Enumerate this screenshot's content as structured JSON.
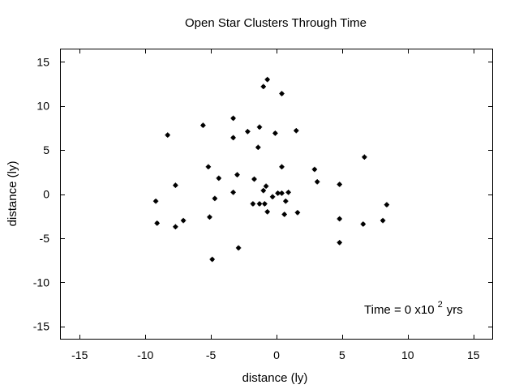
{
  "chart_data": {
    "type": "scatter",
    "title": "Open Star Clusters Through Time",
    "xlabel": "distance (ly)",
    "ylabel": "distance (ly)",
    "xlim": [
      -16.5,
      16.5
    ],
    "ylim": [
      -16.5,
      16.5
    ],
    "xticks": [
      -15,
      -10,
      -5,
      0,
      5,
      10,
      15
    ],
    "yticks": [
      -15,
      -10,
      -5,
      0,
      5,
      10,
      15
    ],
    "xtick_labels": [
      "-15",
      "-10",
      "-5",
      "0",
      "5",
      "10",
      "15"
    ],
    "ytick_labels": [
      "-15",
      "-10",
      "-5",
      "0",
      "5",
      "10",
      "15"
    ],
    "grid": false,
    "legend": "none",
    "annotation": {
      "prefix": "Time = 0 x10",
      "exponent": "2",
      "suffix": "yrs"
    },
    "marker_color": "#000000",
    "x": [
      -0.7,
      -1.0,
      0.4,
      -8.3,
      -5.6,
      -3.3,
      -2.2,
      -1.3,
      -0.1,
      1.5,
      -3.3,
      -1.4,
      6.7,
      -5.2,
      0.4,
      2.9,
      -4.4,
      -3.0,
      -1.7,
      3.1,
      -7.7,
      4.8,
      -0.8,
      -1.0,
      0.9,
      -3.3,
      0.1,
      0.4,
      -0.3,
      -4.7,
      -9.2,
      -1.8,
      -1.3,
      -0.9,
      8.4,
      0.7,
      -0.7,
      1.6,
      0.6,
      -5.1,
      4.8,
      -7.1,
      -9.1,
      6.6,
      8.1,
      -7.7,
      4.8,
      -2.9,
      -4.9
    ],
    "y": [
      13.0,
      12.2,
      11.4,
      6.7,
      7.8,
      8.6,
      7.1,
      7.6,
      6.9,
      7.2,
      6.4,
      5.3,
      4.2,
      3.1,
      3.1,
      2.8,
      1.8,
      2.2,
      1.7,
      1.4,
      1.0,
      1.1,
      0.9,
      0.4,
      0.2,
      0.2,
      0.1,
      0.1,
      -0.3,
      -0.5,
      -0.8,
      -1.1,
      -1.1,
      -1.1,
      -1.2,
      -0.8,
      -2.0,
      -2.1,
      -2.3,
      -2.6,
      -2.8,
      -3.0,
      -3.3,
      -3.4,
      -3.0,
      -3.7,
      -5.5,
      -6.1,
      -7.4
    ]
  }
}
